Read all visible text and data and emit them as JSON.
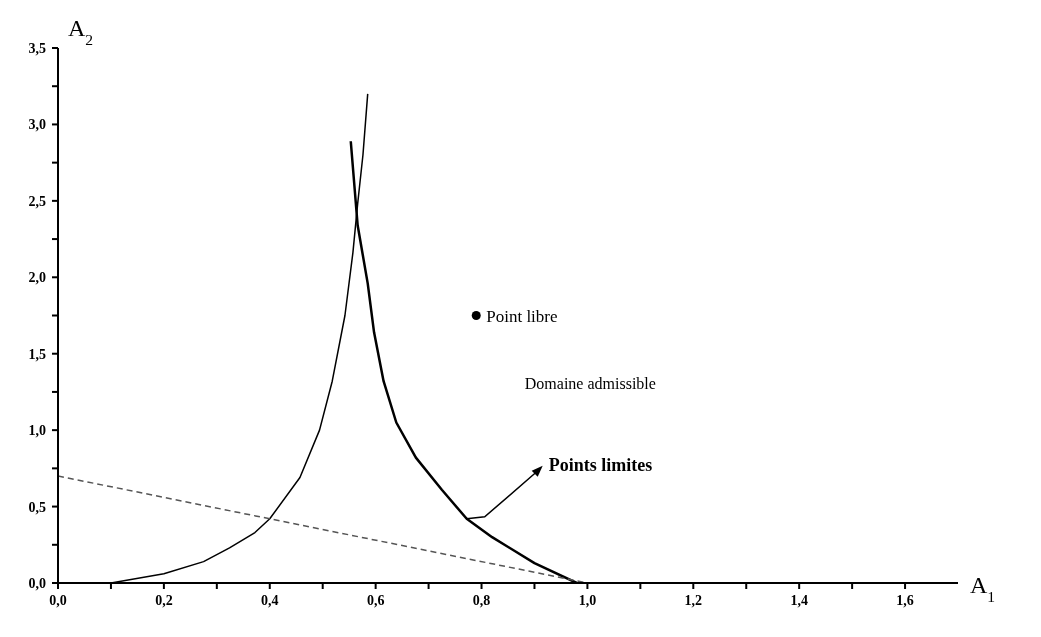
{
  "chart_data": {
    "type": "line",
    "xlabel": "A$_{1}$",
    "ylabel": "A$_{2}$",
    "xlim": [
      0,
      1.7
    ],
    "ylim": [
      0,
      3.5
    ],
    "xticks": [
      {
        "value": 0,
        "label": "0,0"
      },
      {
        "value": 0.1,
        "label": null
      },
      {
        "value": 0.2,
        "label": "0,2"
      },
      {
        "value": 0.3,
        "label": null
      },
      {
        "value": 0.4,
        "label": "0,4"
      },
      {
        "value": 0.5,
        "label": null
      },
      {
        "value": 0.6,
        "label": "0,6"
      },
      {
        "value": 0.7,
        "label": null
      },
      {
        "value": 0.8,
        "label": "0,8"
      },
      {
        "value": 0.9,
        "label": null
      },
      {
        "value": 1.0,
        "label": "1,0"
      },
      {
        "value": 1.1,
        "label": null
      },
      {
        "value": 1.2,
        "label": "1,2"
      },
      {
        "value": 1.3,
        "label": null
      },
      {
        "value": 1.4,
        "label": "1,4"
      },
      {
        "value": 1.5,
        "label": null
      },
      {
        "value": 1.6,
        "label": "1,6"
      }
    ],
    "yticks": [
      {
        "value": 0,
        "label": "0,0"
      },
      {
        "value": 0.25,
        "label": null
      },
      {
        "value": 0.5,
        "label": "0,5"
      },
      {
        "value": 0.75,
        "label": null
      },
      {
        "value": 1.0,
        "label": "1,0"
      },
      {
        "value": 1.25,
        "label": null
      },
      {
        "value": 1.5,
        "label": "1,5"
      },
      {
        "value": 1.75,
        "label": null
      },
      {
        "value": 2.0,
        "label": "2,0"
      },
      {
        "value": 2.25,
        "label": null
      },
      {
        "value": 2.5,
        "label": "2,5"
      },
      {
        "value": 2.75,
        "label": null
      },
      {
        "value": 3.0,
        "label": "3,0"
      },
      {
        "value": 3.25,
        "label": null
      },
      {
        "value": 3.5,
        "label": "3,5"
      }
    ],
    "series": [
      {
        "type": "line",
        "color": "#000000",
        "line_style": "solid",
        "marker": "none",
        "x": [
          0.1,
          0.2,
          0.275,
          0.324,
          0.372,
          0.4,
          0.457,
          0.494,
          0.518,
          0.542,
          0.557,
          0.566,
          0.576,
          0.585
        ],
        "values": [
          0,
          0.06,
          0.14,
          0.23,
          0.33,
          0.42,
          0.69,
          1.0,
          1.32,
          1.75,
          2.16,
          2.48,
          2.8,
          3.2
        ]
      },
      {
        "type": "line",
        "color": "#000000",
        "line_style": "solid",
        "marker": "none",
        "x": [
          0.553,
          0.566,
          0.585,
          0.597,
          0.615,
          0.639,
          0.676,
          0.725,
          0.772,
          0.82,
          0.9,
          0.98
        ],
        "values": [
          2.89,
          2.34,
          1.96,
          1.64,
          1.32,
          1.05,
          0.82,
          0.61,
          0.42,
          0.3,
          0.13,
          0
        ]
      },
      {
        "type": "line",
        "color": "#555555",
        "line_style": "dashed",
        "marker": "none",
        "x": [
          0,
          1.0
        ],
        "values": [
          0.7,
          0
        ]
      },
      {
        "type": "scatter",
        "color": "#000000",
        "marker": "circle",
        "x": [
          0.79
        ],
        "values": [
          1.75
        ]
      }
    ],
    "annotations": [
      {
        "text": "Point libre",
        "x": 0.79,
        "y": 1.75
      },
      "Domaine admissible",
      {
        "text": "Points limites",
        "x": 0.772,
        "y": 0.42
      }
    ]
  }
}
